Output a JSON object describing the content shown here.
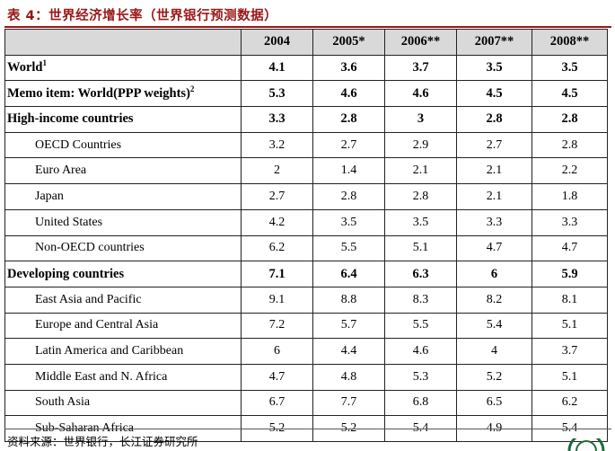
{
  "title": "表 4：世界经济增长率（世界银行预测数据）",
  "columns": [
    "",
    "2004",
    "2005*",
    "2006**",
    "2007**",
    "2008**"
  ],
  "rows": [
    {
      "label": "World",
      "sup": "1",
      "values": [
        "4.1",
        "3.6",
        "3.7",
        "3.5",
        "3.5"
      ],
      "style": "bold"
    },
    {
      "label": "Memo item: World(PPP weights)",
      "sup": "2",
      "values": [
        "5.3",
        "4.6",
        "4.6",
        "4.5",
        "4.5"
      ],
      "style": "bold"
    },
    {
      "label": "High-income countries",
      "sup": "",
      "values": [
        "3.3",
        "2.8",
        "3",
        "2.8",
        "2.8"
      ],
      "style": "bold"
    },
    {
      "label": "OECD Countries",
      "sup": "",
      "values": [
        "3.2",
        "2.7",
        "2.9",
        "2.7",
        "2.8"
      ],
      "style": "sub"
    },
    {
      "label": "Euro Area",
      "sup": "",
      "values": [
        "2",
        "1.4",
        "2.1",
        "2.1",
        "2.2"
      ],
      "style": "sub"
    },
    {
      "label": "Japan",
      "sup": "",
      "values": [
        "2.7",
        "2.8",
        "2.8",
        "2.1",
        "1.8"
      ],
      "style": "sub"
    },
    {
      "label": "United States",
      "sup": "",
      "values": [
        "4.2",
        "3.5",
        "3.5",
        "3.3",
        "3.3"
      ],
      "style": "sub"
    },
    {
      "label": "Non-OECD countries",
      "sup": "",
      "values": [
        "6.2",
        "5.5",
        "5.1",
        "4.7",
        "4.7"
      ],
      "style": "sub"
    },
    {
      "label": "Developing countries",
      "sup": "",
      "values": [
        "7.1",
        "6.4",
        "6.3",
        "6",
        "5.9"
      ],
      "style": "bold"
    },
    {
      "label": "East Asia and Pacific",
      "sup": "",
      "values": [
        "9.1",
        "8.8",
        "8.3",
        "8.2",
        "8.1"
      ],
      "style": "sub"
    },
    {
      "label": "Europe and Central Asia",
      "sup": "",
      "values": [
        "7.2",
        "5.7",
        "5.5",
        "5.4",
        "5.1"
      ],
      "style": "sub"
    },
    {
      "label": "Latin America and Caribbean",
      "sup": "",
      "values": [
        "6",
        "4.4",
        "4.6",
        "4",
        "3.7"
      ],
      "style": "sub"
    },
    {
      "label": "Middle East and N. Africa",
      "sup": "",
      "values": [
        "4.7",
        "4.8",
        "5.3",
        "5.2",
        "5.1"
      ],
      "style": "sub"
    },
    {
      "label": "South Asia",
      "sup": "",
      "values": [
        "6.7",
        "7.7",
        "6.8",
        "6.5",
        "6.2"
      ],
      "style": "sub"
    },
    {
      "label": "Sub-Saharan Africa",
      "sup": "",
      "values": [
        "5.2",
        "5.2",
        "5.4",
        "4.9",
        "5.4"
      ],
      "style": "sub"
    }
  ],
  "source": "资料来源：世界银行，长江证券研究所",
  "colors": {
    "title": "#9a1616",
    "header_bg": "#d9d9d9",
    "logo": "#1f6b3a"
  },
  "logo_icon": "brand-logo-icon"
}
